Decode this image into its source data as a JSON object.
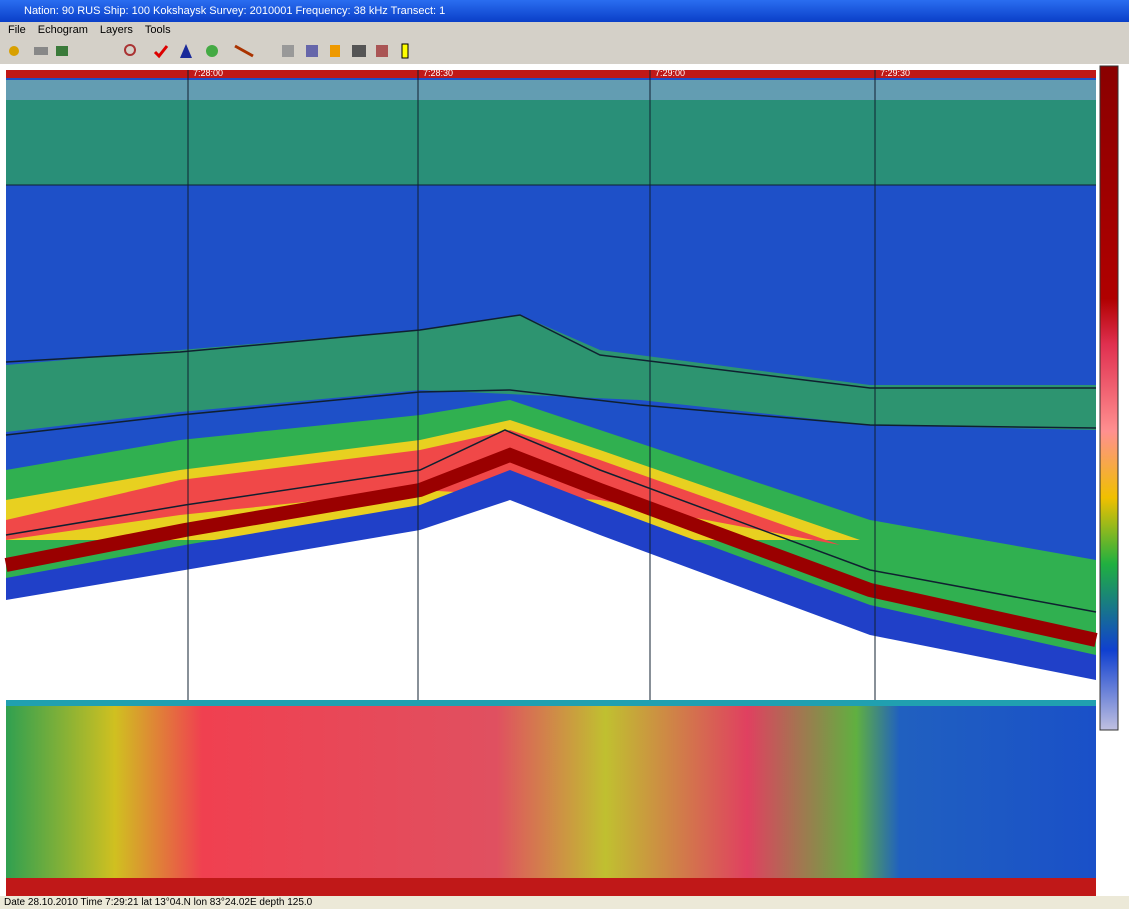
{
  "window": {
    "title": "Nation: 90 RUS   Ship: 100 Kokshaysk   Survey: 2010001   Frequency: 38 kHz   Transect: 1"
  },
  "menu": [
    "File",
    "Echogram",
    "Layers",
    "Tools"
  ],
  "echogram": {
    "time_labels": [
      "7:28:00",
      "7:28:30",
      "7:29:00",
      "7:29:30"
    ]
  },
  "status_bar": "Date 28.10.2010 Time 7:29:21 lat 13°04.N lon 83°24.02E depth 125.0"
}
